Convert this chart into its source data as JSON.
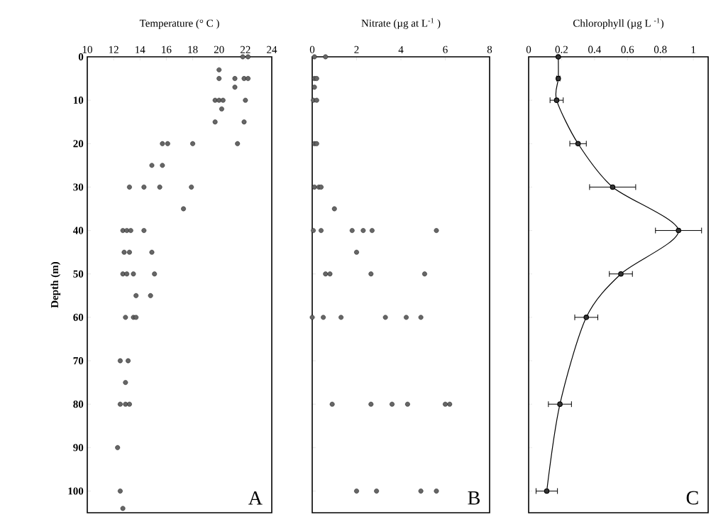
{
  "chart_data": [
    {
      "type": "scatter",
      "xlabel": "Temperature (° C )",
      "ylabel": "Depth (m)",
      "color": "#666666",
      "marker": "circle",
      "x": [
        21.8,
        22.2,
        20,
        20,
        21.2,
        21.9,
        22.2,
        21.2,
        19.7,
        20,
        20.3,
        22,
        20.2,
        19.7,
        21.9,
        15.7,
        16.1,
        18,
        21.4,
        14.9,
        15.7,
        13.2,
        14.3,
        15.5,
        17.9,
        17.3,
        12.7,
        13,
        13.3,
        14.3,
        12.8,
        13.2,
        14.9,
        12.7,
        13,
        13.5,
        15.1,
        13.7,
        14.8,
        12.9,
        13.5,
        13.7,
        12.5,
        13.1,
        12.9,
        12.5,
        12.9,
        13.2,
        12.3,
        12.5,
        12.7
      ],
      "values": [
        0,
        0,
        3,
        5,
        5,
        5,
        5,
        7,
        10,
        10,
        10,
        10,
        12,
        15,
        15,
        20,
        20,
        20,
        20,
        25,
        25,
        30,
        30,
        30,
        30,
        35,
        40,
        40,
        40,
        40,
        45,
        45,
        45,
        50,
        50,
        50,
        50,
        55,
        55,
        60,
        60,
        60,
        70,
        70,
        75,
        80,
        80,
        80,
        90,
        100,
        104
      ],
      "xlim": [
        10,
        24
      ],
      "xticks": [
        10,
        12,
        14,
        16,
        18,
        20,
        22,
        24
      ],
      "ylim": [
        105,
        0
      ],
      "yticks": [
        0,
        10,
        20,
        30,
        40,
        50,
        60,
        70,
        80,
        90,
        100
      ],
      "annotations": [
        "A"
      ]
    },
    {
      "type": "scatter",
      "xlabel": "Nitrate (µg at L$^{-1}$ )",
      "color": "#666666",
      "marker": "circle",
      "x": [
        0.1,
        0.6,
        0.1,
        0.2,
        0.1,
        0.05,
        0.2,
        0.1,
        0.2,
        0.1,
        0.3,
        0.4,
        1.0,
        0.05,
        0.4,
        1.8,
        2.3,
        2.7,
        5.6,
        2.0,
        0.6,
        0.8,
        2.65,
        5.07,
        0,
        0.5,
        1.3,
        3.3,
        4.24,
        4.9,
        0.9,
        2.65,
        3.6,
        4.3,
        6.0,
        6.2,
        2.0,
        2.9,
        4.9,
        5.6
      ],
      "values": [
        0,
        0,
        5,
        5,
        7,
        10,
        10,
        20,
        20,
        30,
        30,
        30,
        35,
        40,
        40,
        40,
        40,
        40,
        40,
        45,
        50,
        50,
        50,
        50,
        60,
        60,
        60,
        60,
        60,
        60,
        80,
        80,
        80,
        80,
        80,
        80,
        100,
        100,
        100,
        100
      ],
      "xlim": [
        0,
        8
      ],
      "xticks": [
        0,
        2,
        4,
        6,
        8
      ],
      "ylim": [
        105,
        0
      ],
      "yticks": [
        0,
        10,
        20,
        30,
        40,
        50,
        60,
        70,
        80,
        90,
        100
      ],
      "tick_labels": "x",
      "annotations": [
        "B"
      ]
    },
    {
      "type": "line",
      "xlabel": "Chlorophyll (µg L $^{-1}$)",
      "color": "#333333",
      "marker": "circle",
      "line_style": "solid",
      "x": [
        0.18,
        0.18,
        0.17,
        0.3,
        0.51,
        0.91,
        0.56,
        0.35,
        0.19,
        0.11
      ],
      "values": [
        0,
        5,
        10,
        20,
        30,
        40,
        50,
        60,
        80,
        100
      ],
      "xerrors": [
        null,
        0.01,
        0.04,
        0.05,
        0.14,
        0.14,
        0.07,
        0.07,
        0.07,
        0.065
      ],
      "xlim": [
        0,
        1.09
      ],
      "xticks": [
        0,
        0.2,
        0.4,
        0.6,
        0.8,
        1
      ],
      "ylim": [
        105,
        0
      ],
      "yticks": [
        0,
        10,
        20,
        30,
        40,
        50,
        60,
        70,
        80,
        90,
        100
      ],
      "tick_labels": "x",
      "annotations": [
        "C"
      ]
    }
  ]
}
